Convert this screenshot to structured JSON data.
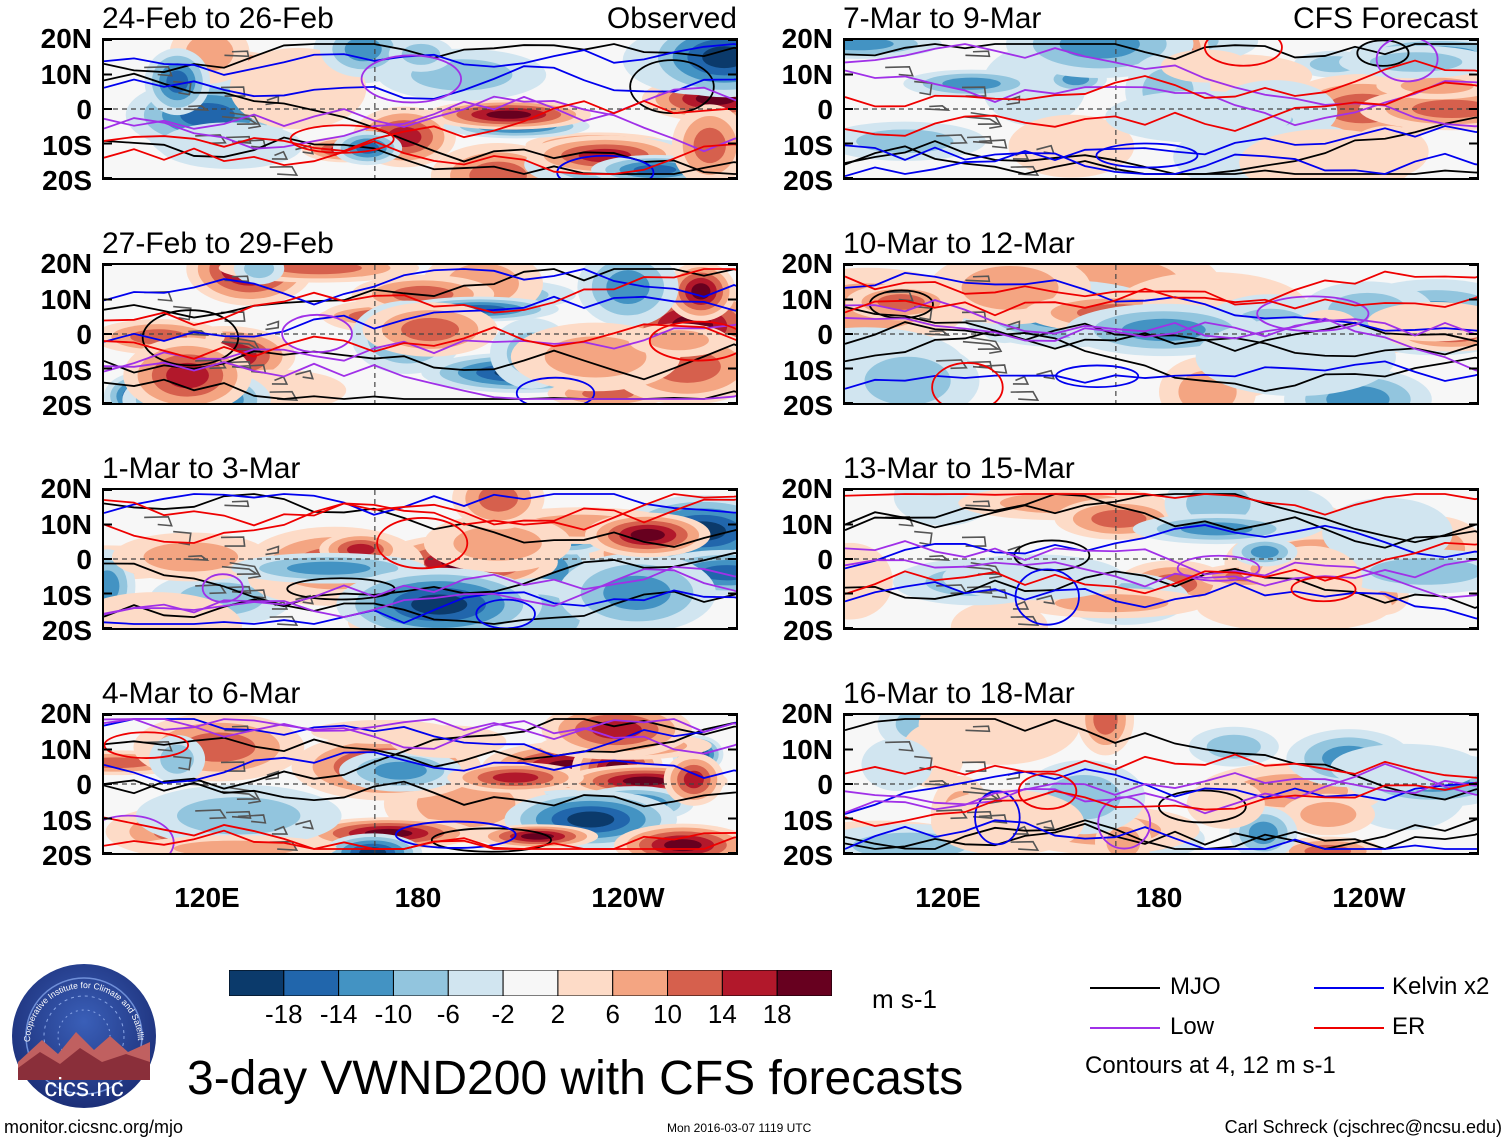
{
  "panels": [
    {
      "id": "p1",
      "period": "24-Feb to 26-Feb",
      "tag": "Observed"
    },
    {
      "id": "p2",
      "period": "27-Feb to 29-Feb",
      "tag": ""
    },
    {
      "id": "p3",
      "period": "1-Mar to 3-Mar",
      "tag": ""
    },
    {
      "id": "p4",
      "period": "4-Mar to 6-Mar",
      "tag": ""
    },
    {
      "id": "p5",
      "period": "7-Mar to 9-Mar",
      "tag": "CFS Forecast"
    },
    {
      "id": "p6",
      "period": "10-Mar to 12-Mar",
      "tag": ""
    },
    {
      "id": "p7",
      "period": "13-Mar to 15-Mar",
      "tag": ""
    },
    {
      "id": "p8",
      "period": "16-Mar to 18-Mar",
      "tag": ""
    }
  ],
  "lat_labels": [
    "20N",
    "10N",
    "0",
    "10S",
    "20S"
  ],
  "lon_labels": [
    "120E",
    "180",
    "120W"
  ],
  "colorbar": {
    "ticks": [
      "-18",
      "-14",
      "-10",
      "-6",
      "-2",
      "2",
      "6",
      "10",
      "14",
      "18"
    ],
    "colors": [
      "#0b3a6b",
      "#2166ac",
      "#4393c3",
      "#92c5de",
      "#d1e5f0",
      "#f7f7f7",
      "#fddbc7",
      "#f4a582",
      "#d6604d",
      "#b2182b",
      "#67001f"
    ],
    "units": "m s-1"
  },
  "legend": {
    "items": [
      {
        "label": "MJO",
        "color": "#000000"
      },
      {
        "label": "Kelvin x2",
        "color": "#0000ee"
      },
      {
        "label": "Low",
        "color": "#a030e8"
      },
      {
        "label": "ER",
        "color": "#ee0000"
      }
    ],
    "note": "Contours at 4, 12 m s-1"
  },
  "title": "3-day VWND200 with CFS forecasts",
  "logo": {
    "text": "cics.nc",
    "ring_text": "Cooperative Institute for Climate and Satellites"
  },
  "footer": {
    "url": "monitor.cicsnc.org/mjo",
    "timestamp": "Mon 2016-03-07 1119 UTC",
    "credit": "Carl Schreck (cjschrec@ncsu.edu)"
  }
}
